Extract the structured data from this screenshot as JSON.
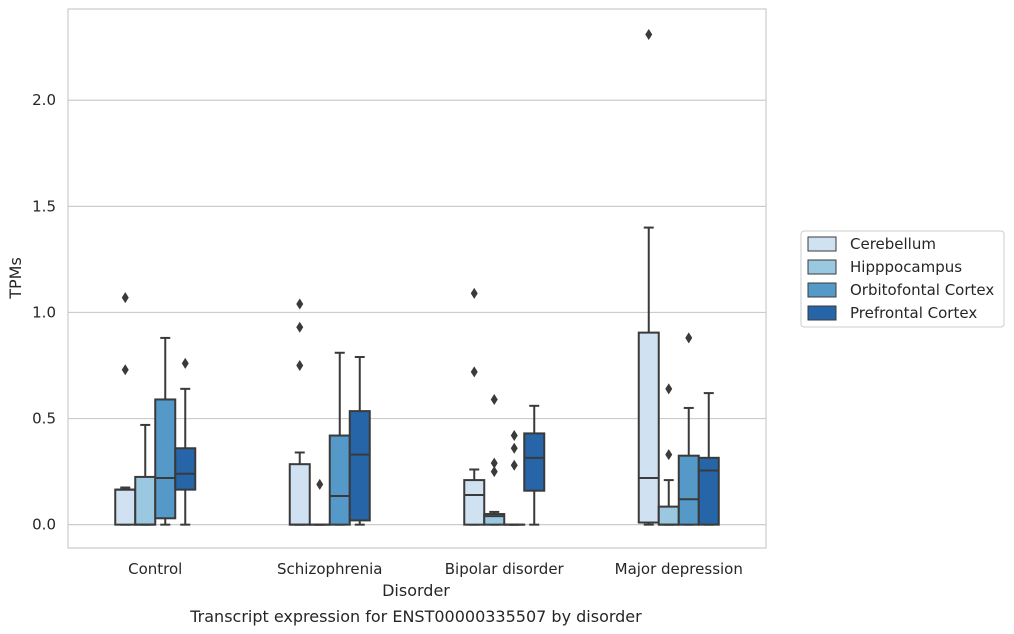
{
  "chart_data": {
    "type": "box",
    "caption": "Transcript expression for ENST00000335507 by disorder",
    "xlabel": "Disorder",
    "ylabel": "TPMs",
    "ylim": [
      -0.11,
      2.43
    ],
    "yticks": [
      0.0,
      0.5,
      1.0,
      1.5,
      2.0
    ],
    "ytick_labels": [
      "0.0",
      "0.5",
      "1.0",
      "1.5",
      "2.0"
    ],
    "grid": "horizontal",
    "legend_position": "center-right",
    "categories": [
      "Control",
      "Schizophrenia",
      "Bipolar disorder",
      "Major depression"
    ],
    "series": [
      {
        "name": "Cerebellum",
        "color": "#d0e1f2",
        "boxes": [
          {
            "whisker_low": 0.0,
            "q1": 0.0,
            "median": 0.165,
            "q3": 0.165,
            "whisker_high": 0.175,
            "outliers": [
              0.73,
              1.07
            ]
          },
          {
            "whisker_low": 0.0,
            "q1": 0.0,
            "median": 0.0,
            "q3": 0.285,
            "whisker_high": 0.34,
            "outliers": [
              0.75,
              0.93,
              1.04
            ]
          },
          {
            "whisker_low": 0.0,
            "q1": 0.0,
            "median": 0.14,
            "q3": 0.21,
            "whisker_high": 0.26,
            "outliers": [
              0.72,
              1.09
            ]
          },
          {
            "whisker_low": 0.0,
            "q1": 0.01,
            "median": 0.22,
            "q3": 0.905,
            "whisker_high": 1.4,
            "outliers": [
              2.31
            ]
          }
        ]
      },
      {
        "name": "Hipppocampus",
        "color": "#9ac8e0",
        "boxes": [
          {
            "whisker_low": 0.0,
            "q1": 0.0,
            "median": 0.0,
            "q3": 0.225,
            "whisker_high": 0.47,
            "outliers": []
          },
          {
            "whisker_low": 0.0,
            "q1": 0.0,
            "median": 0.0,
            "q3": 0.0,
            "whisker_high": 0.0,
            "outliers": [
              0.19
            ]
          },
          {
            "whisker_low": 0.0,
            "q1": 0.0,
            "median": 0.04,
            "q3": 0.05,
            "whisker_high": 0.06,
            "outliers": [
              0.25,
              0.29,
              0.59
            ]
          },
          {
            "whisker_low": 0.0,
            "q1": 0.0,
            "median": 0.0,
            "q3": 0.085,
            "whisker_high": 0.21,
            "outliers": [
              0.33,
              0.64
            ]
          }
        ]
      },
      {
        "name": "Orbitofontal Cortex",
        "color": "#5599c9",
        "boxes": [
          {
            "whisker_low": 0.0,
            "q1": 0.03,
            "median": 0.22,
            "q3": 0.59,
            "whisker_high": 0.88,
            "outliers": []
          },
          {
            "whisker_low": 0.0,
            "q1": 0.0,
            "median": 0.135,
            "q3": 0.42,
            "whisker_high": 0.81,
            "outliers": []
          },
          {
            "whisker_low": 0.0,
            "q1": 0.0,
            "median": 0.0,
            "q3": 0.0,
            "whisker_high": 0.0,
            "outliers": [
              0.28,
              0.36,
              0.42
            ]
          },
          {
            "whisker_low": 0.0,
            "q1": 0.0,
            "median": 0.12,
            "q3": 0.325,
            "whisker_high": 0.55,
            "outliers": [
              0.88
            ]
          }
        ]
      },
      {
        "name": "Prefrontal Cortex",
        "color": "#2565a8",
        "boxes": [
          {
            "whisker_low": 0.0,
            "q1": 0.165,
            "median": 0.24,
            "q3": 0.36,
            "whisker_high": 0.64,
            "outliers": [
              0.76
            ]
          },
          {
            "whisker_low": 0.0,
            "q1": 0.02,
            "median": 0.33,
            "q3": 0.535,
            "whisker_high": 0.79,
            "outliers": []
          },
          {
            "whisker_low": 0.0,
            "q1": 0.16,
            "median": 0.315,
            "q3": 0.43,
            "whisker_high": 0.56,
            "outliers": []
          },
          {
            "whisker_low": 0.0,
            "q1": 0.0,
            "median": 0.255,
            "q3": 0.315,
            "whisker_high": 0.62,
            "outliers": []
          }
        ]
      }
    ]
  }
}
